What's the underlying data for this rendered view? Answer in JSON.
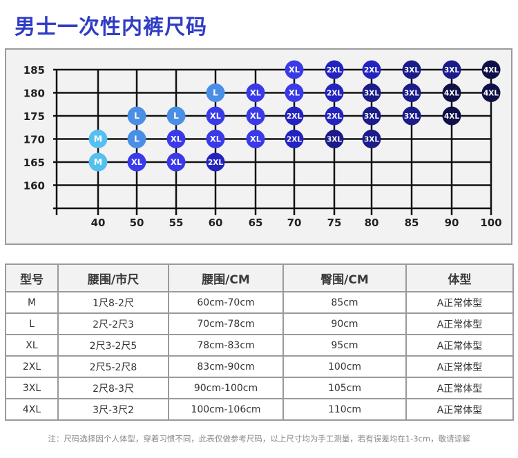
{
  "title": "男士一次性内裤尺码",
  "chart_data": {
    "type": "table",
    "x_ticks": [
      40,
      50,
      55,
      60,
      65,
      70,
      75,
      80,
      85,
      90,
      100
    ],
    "y_ticks": [
      185,
      180,
      175,
      170,
      165,
      160
    ],
    "points": [
      {
        "x": 40,
        "y": 170,
        "size": "M"
      },
      {
        "x": 40,
        "y": 165,
        "size": "M"
      },
      {
        "x": 50,
        "y": 175,
        "size": "L"
      },
      {
        "x": 50,
        "y": 170,
        "size": "L"
      },
      {
        "x": 50,
        "y": 165,
        "size": "XL"
      },
      {
        "x": 55,
        "y": 175,
        "size": "L"
      },
      {
        "x": 55,
        "y": 170,
        "size": "XL"
      },
      {
        "x": 55,
        "y": 165,
        "size": "XL"
      },
      {
        "x": 60,
        "y": 180,
        "size": "L"
      },
      {
        "x": 60,
        "y": 175,
        "size": "XL"
      },
      {
        "x": 60,
        "y": 170,
        "size": "XL"
      },
      {
        "x": 60,
        "y": 165,
        "size": "2XL"
      },
      {
        "x": 65,
        "y": 180,
        "size": "XL"
      },
      {
        "x": 65,
        "y": 175,
        "size": "XL"
      },
      {
        "x": 65,
        "y": 170,
        "size": "XL"
      },
      {
        "x": 70,
        "y": 185,
        "size": "XL"
      },
      {
        "x": 70,
        "y": 180,
        "size": "XL"
      },
      {
        "x": 70,
        "y": 175,
        "size": "2XL"
      },
      {
        "x": 70,
        "y": 170,
        "size": "2XL"
      },
      {
        "x": 75,
        "y": 185,
        "size": "2XL"
      },
      {
        "x": 75,
        "y": 180,
        "size": "2XL"
      },
      {
        "x": 75,
        "y": 175,
        "size": "2XL"
      },
      {
        "x": 75,
        "y": 170,
        "size": "3XL"
      },
      {
        "x": 80,
        "y": 185,
        "size": "2XL"
      },
      {
        "x": 80,
        "y": 180,
        "size": "3XL"
      },
      {
        "x": 80,
        "y": 175,
        "size": "3XL"
      },
      {
        "x": 80,
        "y": 170,
        "size": "3XL"
      },
      {
        "x": 85,
        "y": 185,
        "size": "3XL"
      },
      {
        "x": 85,
        "y": 180,
        "size": "3XL"
      },
      {
        "x": 85,
        "y": 175,
        "size": "3XL"
      },
      {
        "x": 90,
        "y": 185,
        "size": "3XL"
      },
      {
        "x": 90,
        "y": 180,
        "size": "4XL"
      },
      {
        "x": 90,
        "y": 175,
        "size": "4XL"
      },
      {
        "x": 100,
        "y": 185,
        "size": "4XL"
      },
      {
        "x": 100,
        "y": 180,
        "size": "4XL"
      }
    ],
    "size_colors": {
      "M": "#55bff0",
      "L": "#4a8ee6",
      "XL": "#3a3ae8",
      "2XL": "#2323c0",
      "3XL": "#1b1b8a",
      "4XL": "#101048"
    }
  },
  "table": {
    "headers": [
      "型号",
      "腰围/市尺",
      "腰围/CM",
      "臀围/CM",
      "体型"
    ],
    "rows": [
      [
        "M",
        "1尺8-2尺",
        "60cm-70cm",
        "85cm",
        "A正常体型"
      ],
      [
        "L",
        "2尺-2尺3",
        "70cm-78cm",
        "90cm",
        "A正常体型"
      ],
      [
        "XL",
        "2尺3-2尺5",
        "78cm-83cm",
        "95cm",
        "A正常体型"
      ],
      [
        "2XL",
        "2尺5-2尺8",
        "83cm-90cm",
        "100cm",
        "A正常体型"
      ],
      [
        "3XL",
        "2尺8-3尺",
        "90cm-100cm",
        "105cm",
        "A正常体型"
      ],
      [
        "4XL",
        "3尺-3尺2",
        "100cm-106cm",
        "110cm",
        "A正常体型"
      ]
    ]
  },
  "note": "注：尺码选择因个人体型，穿着习惯不同，此表仅做参考尺码，以上尺寸均为手工测量，若有误差均在1-3cm，敬请谅解"
}
